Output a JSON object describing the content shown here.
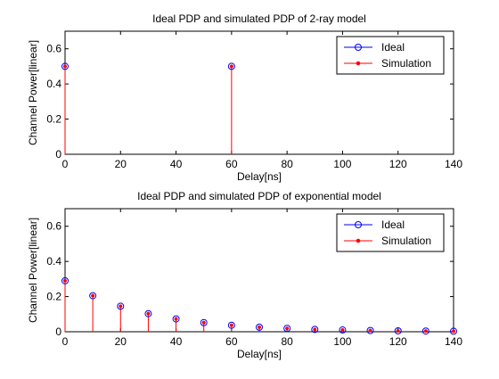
{
  "chart_data": [
    {
      "type": "stem",
      "title": "Ideal PDP and simulated PDP of 2-ray model",
      "xlabel": "Delay[ns]",
      "ylabel": "Channel Power[linear]",
      "xlim": [
        0,
        140
      ],
      "ylim": [
        0,
        0.7
      ],
      "xticks": [
        0,
        20,
        40,
        60,
        80,
        100,
        120,
        140
      ],
      "xtick_labels": [
        "0",
        "20",
        "40",
        "60",
        "80",
        "100",
        "120",
        "140"
      ],
      "yticks": [
        0,
        0.2,
        0.4,
        0.6
      ],
      "ytick_labels": [
        "0",
        "0.2",
        "0.4",
        "0.6"
      ],
      "grid": false,
      "legend_position": "top-right",
      "series": [
        {
          "name": "Ideal",
          "marker": "circle",
          "color": "#0000ff",
          "line": true,
          "x": [
            0,
            60
          ],
          "y": [
            0.5,
            0.5
          ]
        },
        {
          "name": "Simulation",
          "marker": "dot",
          "color": "#ff0000",
          "stem": true,
          "x": [
            0,
            60
          ],
          "y": [
            0.5,
            0.5
          ]
        }
      ]
    },
    {
      "type": "stem",
      "title": "Ideal PDP and simulated PDP of exponential model",
      "xlabel": "Delay[ns]",
      "ylabel": "Channel Power[linear]",
      "xlim": [
        0,
        140
      ],
      "ylim": [
        0,
        0.7
      ],
      "xticks": [
        0,
        20,
        40,
        60,
        80,
        100,
        120,
        140
      ],
      "xtick_labels": [
        "0",
        "20",
        "40",
        "60",
        "80",
        "100",
        "120",
        "140"
      ],
      "yticks": [
        0,
        0.2,
        0.4,
        0.6
      ],
      "ytick_labels": [
        "0",
        "0.2",
        "0.4",
        "0.6"
      ],
      "grid": false,
      "legend_position": "top-right",
      "series": [
        {
          "name": "Ideal",
          "marker": "circle",
          "color": "#0000ff",
          "line": true,
          "x": [
            0,
            10,
            20,
            30,
            40,
            50,
            60,
            70,
            80,
            90,
            100,
            110,
            120,
            130,
            140
          ],
          "y": [
            0.29,
            0.205,
            0.145,
            0.103,
            0.073,
            0.052,
            0.037,
            0.026,
            0.019,
            0.013,
            0.01,
            0.007,
            0.005,
            0.004,
            0.003
          ]
        },
        {
          "name": "Simulation",
          "marker": "dot",
          "color": "#ff0000",
          "stem": true,
          "x": [
            0,
            10,
            20,
            30,
            40,
            50,
            60,
            70,
            80,
            90,
            100,
            110,
            120,
            130,
            140
          ],
          "y": [
            0.29,
            0.205,
            0.145,
            0.103,
            0.073,
            0.052,
            0.037,
            0.026,
            0.019,
            0.013,
            0.01,
            0.007,
            0.005,
            0.004,
            0.003
          ]
        }
      ]
    }
  ]
}
